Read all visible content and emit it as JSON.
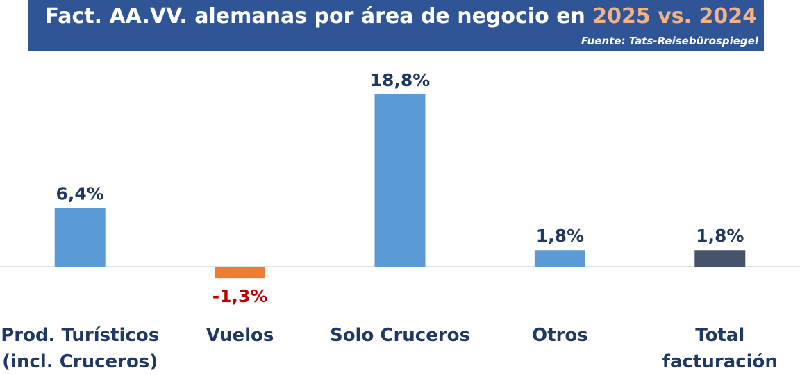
{
  "header": {
    "title_main": "Fact. AA.VV. alemanas por área de negocio en",
    "title_years": "2025 vs. 2024",
    "source": "Fuente: Tats-Reisebürospiegel"
  },
  "colors": {
    "banner": "#2f5597",
    "title_accent": "#f4b183",
    "bar_positive": "#5b9bd5",
    "bar_negative": "#ed7d31",
    "bar_total": "#44546a",
    "label_positive": "#1f3864",
    "label_negative": "#c00000",
    "category_label": "#1f3864",
    "baseline": "#d9d9d9"
  },
  "chart_data": {
    "type": "bar",
    "categories": [
      [
        "Prod. Turísticos",
        "(incl. Cruceros)"
      ],
      [
        "Vuelos"
      ],
      [
        "Solo Cruceros"
      ],
      [
        "Otros"
      ],
      [
        "Total",
        "facturación"
      ]
    ],
    "values": [
      6.4,
      -1.3,
      18.8,
      1.8,
      1.8
    ],
    "value_labels": [
      "6,4%",
      "-1,3%",
      "18,8%",
      "1,8%",
      "1,8%"
    ],
    "bar_colors": [
      "#5b9bd5",
      "#ed7d31",
      "#5b9bd5",
      "#5b9bd5",
      "#44546a"
    ],
    "value_label_colors": [
      "#1f3864",
      "#c00000",
      "#1f3864",
      "#1f3864",
      "#1f3864"
    ],
    "xlabel": "",
    "ylabel": "",
    "grid": false,
    "legend": "none"
  }
}
